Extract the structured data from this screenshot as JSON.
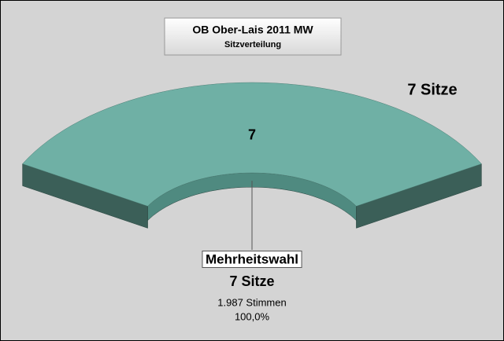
{
  "chart_data": {
    "type": "pie",
    "title": "OB Ober-Lais 2011 MW",
    "subtitle": "Sitzverteilung",
    "total_label": "7 Sitze",
    "categories": [
      "Mehrheitswahl"
    ],
    "values": [
      7
    ],
    "value_labels": [
      "7"
    ],
    "seat_labels": [
      "7 Sitze"
    ],
    "vote_labels": [
      "1.987 Stimmen"
    ],
    "share_labels": [
      "100,0%"
    ],
    "colors": [
      "#6fb0a5"
    ]
  }
}
